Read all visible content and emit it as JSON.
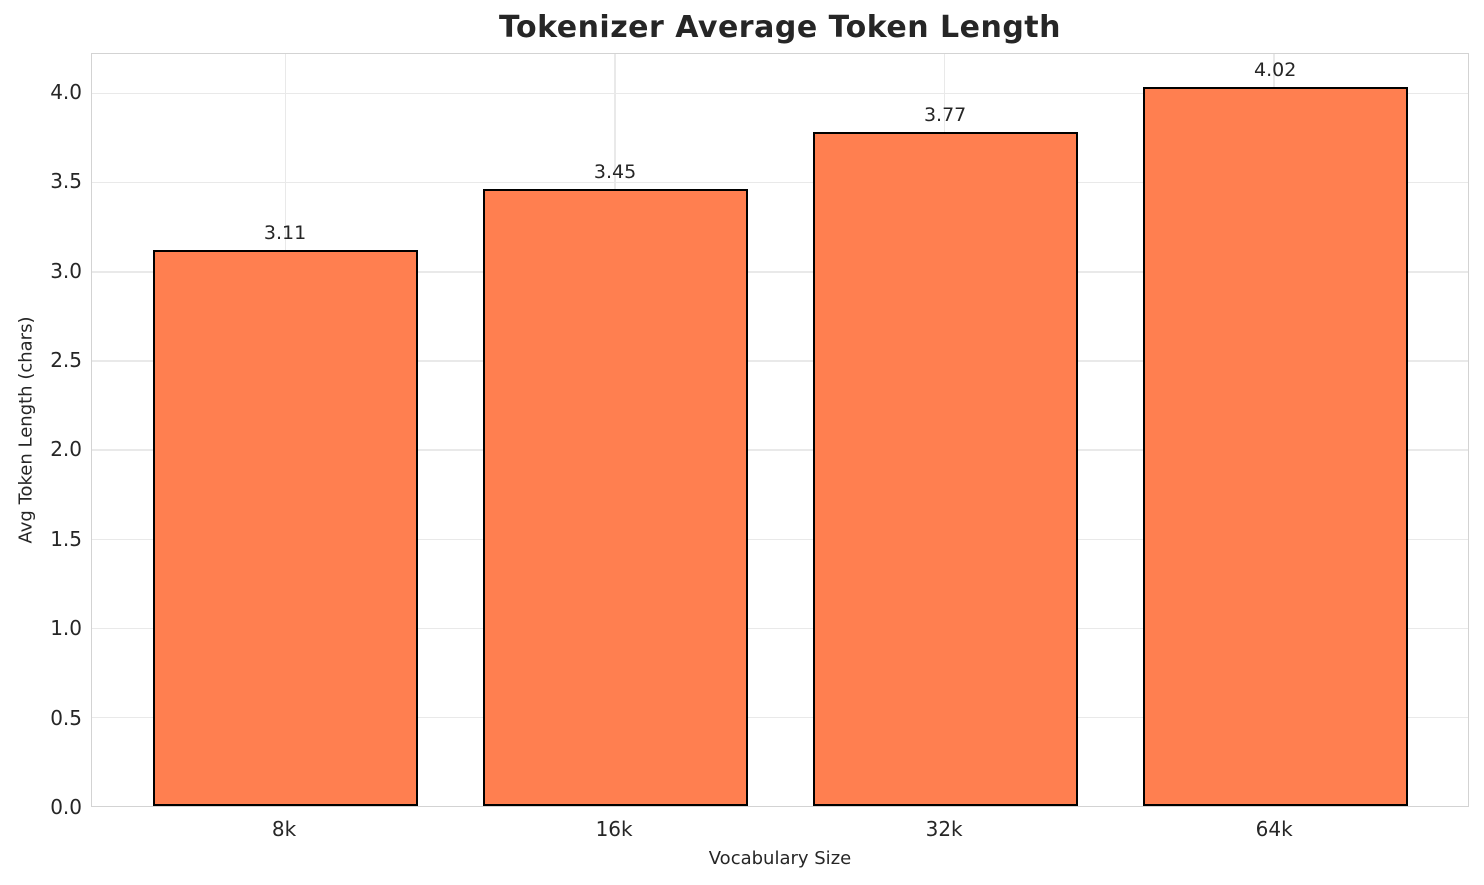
{
  "chart_data": {
    "type": "bar",
    "title": "Tokenizer Average Token Length",
    "xlabel": "Vocabulary Size",
    "ylabel": "Avg Token Length (chars)",
    "categories": [
      "8k",
      "16k",
      "32k",
      "64k"
    ],
    "values": [
      3.11,
      3.45,
      3.77,
      4.02
    ],
    "bar_labels": [
      "3.11",
      "3.45",
      "3.77",
      "4.02"
    ],
    "y_ticks": [
      "0.0",
      "0.5",
      "1.0",
      "1.5",
      "2.0",
      "2.5",
      "3.0",
      "3.5",
      "4.0"
    ],
    "ylim": [
      0,
      4.217
    ],
    "grid": "both",
    "legend": "none",
    "bar_color": "#FF7F50",
    "bar_edge_color": "#000000",
    "grid_color": "#e9e9e9",
    "spine_color": "#d3d3d3",
    "text_color": "#262626",
    "background_color": "#ffffff"
  }
}
